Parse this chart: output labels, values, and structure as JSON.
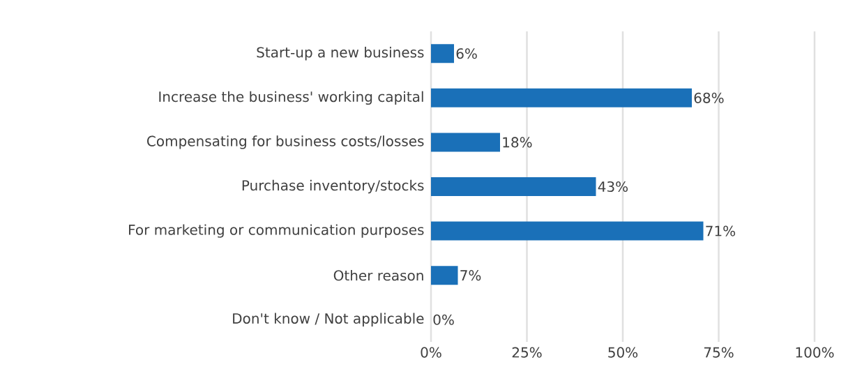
{
  "chart_data": {
    "type": "bar",
    "orientation": "horizontal",
    "categories": [
      "Start-up a new business",
      "Increase the business' working capital",
      "Compensating for business costs/losses",
      "Purchase inventory/stocks",
      "For marketing or communication purposes",
      "Other reason",
      "Don't know / Not applicable"
    ],
    "values": [
      6,
      68,
      18,
      43,
      71,
      7,
      0
    ],
    "value_labels": [
      "6%",
      "68%",
      "18%",
      "43%",
      "71%",
      "7%",
      "0%"
    ],
    "color": "#1a70b8",
    "xlim": [
      0,
      100
    ],
    "xticks": [
      {
        "value": 0,
        "label": "0%"
      },
      {
        "value": 25,
        "label": "25%"
      },
      {
        "value": 50,
        "label": "50%"
      },
      {
        "value": 75,
        "label": "75%"
      },
      {
        "value": 100,
        "label": "100%"
      }
    ],
    "grid": "x"
  }
}
